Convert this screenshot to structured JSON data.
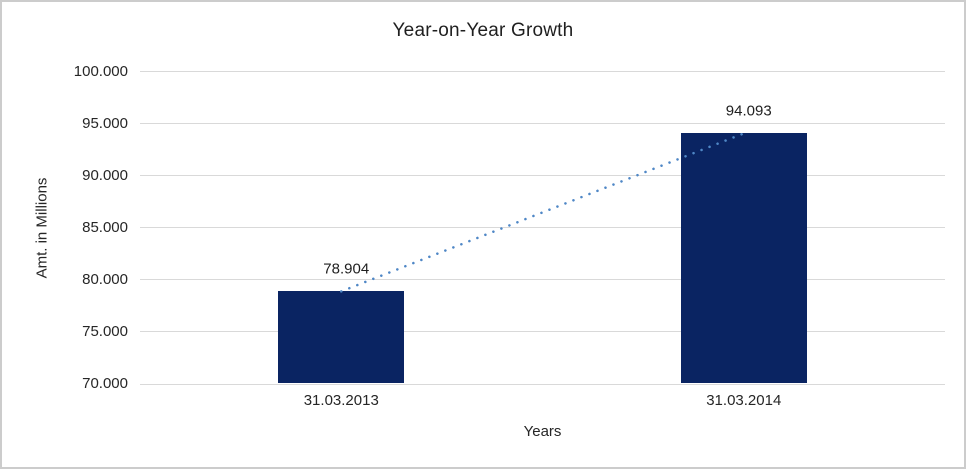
{
  "chart_data": {
    "type": "bar",
    "title": "Year-on-Year Growth",
    "categories": [
      "31.03.2013",
      "31.03.2014"
    ],
    "values": [
      78.904,
      94.093
    ],
    "data_labels": [
      "78.904",
      "94.093"
    ],
    "xlabel": "Years",
    "ylabel": "Amt. in Millions",
    "ylim": [
      70,
      100
    ],
    "ytick_step": 5,
    "ytick_labels": [
      "70.000",
      "75.000",
      "80.000",
      "85.000",
      "90.000",
      "95.000",
      "100.000"
    ],
    "grid": true,
    "legend": "none",
    "trendline": {
      "type": "linear",
      "style": "dotted",
      "connects": "bar-tops"
    },
    "colors": {
      "bar": "#0a2462",
      "trendline": "#4f87c6",
      "gridline": "#d9d9d9",
      "axis_line": "#d9d9d9",
      "text": "#262626",
      "title_text": "#1f1f1f",
      "background": "#ffffff",
      "frame_border": "#cccccc"
    }
  }
}
